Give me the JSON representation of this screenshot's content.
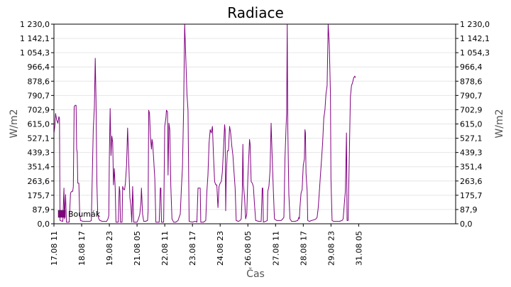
{
  "chart_data": {
    "type": "line",
    "title": "Radiace",
    "xlabel": "Čas",
    "ylabel": "W/m2",
    "ylabel_right": "W/m2",
    "ylim": [
      0,
      1230
    ],
    "y_ticks": [
      "0,0",
      "87,9",
      "175,7",
      "263,6",
      "351,4",
      "439,3",
      "527,1",
      "615,0",
      "702,9",
      "790,7",
      "878,6",
      "966,4",
      "1 054,3",
      "1 142,1",
      "1 230,0"
    ],
    "x_range": [
      0,
      14.5
    ],
    "x_ticks": [
      {
        "x": 0,
        "label": "17.08 11"
      },
      {
        "x": 1,
        "label": "18.08 17"
      },
      {
        "x": 2,
        "label": "19.08 23"
      },
      {
        "x": 3,
        "label": "21.08 05"
      },
      {
        "x": 4,
        "label": "22.08 11"
      },
      {
        "x": 5,
        "label": "23.08 17"
      },
      {
        "x": 6,
        "label": "24.08 23"
      },
      {
        "x": 7,
        "label": "26.08 05"
      },
      {
        "x": 8,
        "label": "27.08 11"
      },
      {
        "x": 9,
        "label": "28.08 17"
      },
      {
        "x": 10,
        "label": "29.08 23"
      },
      {
        "x": 11,
        "label": "31.08 05"
      }
    ],
    "grid": true,
    "legend_position": "bottom-left",
    "series": [
      {
        "name": "Boumák",
        "color": "#800080",
        "points": [
          [
            0.0,
            560
          ],
          [
            0.03,
            600
          ],
          [
            0.06,
            680
          ],
          [
            0.1,
            640
          ],
          [
            0.14,
            620
          ],
          [
            0.18,
            660
          ],
          [
            0.2,
            650
          ],
          [
            0.22,
            20
          ],
          [
            0.32,
            15
          ],
          [
            0.36,
            220
          ],
          [
            0.38,
            30
          ],
          [
            0.42,
            180
          ],
          [
            0.45,
            10
          ],
          [
            0.55,
            10
          ],
          [
            0.6,
            190
          ],
          [
            0.64,
            200
          ],
          [
            0.68,
            200
          ],
          [
            0.7,
            230
          ],
          [
            0.73,
            720
          ],
          [
            0.76,
            730
          ],
          [
            0.8,
            730
          ],
          [
            0.82,
            460
          ],
          [
            0.84,
            440
          ],
          [
            0.86,
            250
          ],
          [
            0.9,
            250
          ],
          [
            0.93,
            60
          ],
          [
            0.96,
            20
          ],
          [
            1.05,
            15
          ],
          [
            1.2,
            15
          ],
          [
            1.3,
            15
          ],
          [
            1.35,
            20
          ],
          [
            1.42,
            580
          ],
          [
            1.46,
            720
          ],
          [
            1.49,
            1020
          ],
          [
            1.52,
            760
          ],
          [
            1.55,
            250
          ],
          [
            1.58,
            60
          ],
          [
            1.62,
            30
          ],
          [
            1.66,
            20
          ],
          [
            1.75,
            15
          ],
          [
            1.9,
            15
          ],
          [
            1.95,
            30
          ],
          [
            1.98,
            50
          ],
          [
            2.0,
            420
          ],
          [
            2.03,
            710
          ],
          [
            2.06,
            420
          ],
          [
            2.09,
            540
          ],
          [
            2.12,
            500
          ],
          [
            2.15,
            240
          ],
          [
            2.18,
            340
          ],
          [
            2.21,
            220
          ],
          [
            2.24,
            10
          ],
          [
            2.32,
            10
          ],
          [
            2.36,
            230
          ],
          [
            2.38,
            200
          ],
          [
            2.4,
            10
          ],
          [
            2.46,
            10
          ],
          [
            2.48,
            230
          ],
          [
            2.52,
            210
          ],
          [
            2.55,
            210
          ],
          [
            2.58,
            250
          ],
          [
            2.62,
            360
          ],
          [
            2.66,
            590
          ],
          [
            2.7,
            380
          ],
          [
            2.74,
            160
          ],
          [
            2.78,
            110
          ],
          [
            2.81,
            10
          ],
          [
            2.84,
            230
          ],
          [
            2.88,
            10
          ],
          [
            2.92,
            10
          ],
          [
            2.96,
            10
          ],
          [
            3.0,
            10
          ],
          [
            3.05,
            30
          ],
          [
            3.1,
            60
          ],
          [
            3.14,
            130
          ],
          [
            3.16,
            220
          ],
          [
            3.2,
            60
          ],
          [
            3.24,
            15
          ],
          [
            3.3,
            15
          ],
          [
            3.38,
            20
          ],
          [
            3.4,
            80
          ],
          [
            3.42,
            700
          ],
          [
            3.45,
            680
          ],
          [
            3.48,
            550
          ],
          [
            3.5,
            500
          ],
          [
            3.52,
            460
          ],
          [
            3.54,
            520
          ],
          [
            3.56,
            500
          ],
          [
            3.6,
            400
          ],
          [
            3.64,
            280
          ],
          [
            3.68,
            10
          ],
          [
            3.8,
            10
          ],
          [
            3.84,
            220
          ],
          [
            3.86,
            220
          ],
          [
            3.88,
            10
          ],
          [
            3.92,
            10
          ],
          [
            3.96,
            10
          ],
          [
            4.0,
            600
          ],
          [
            4.04,
            650
          ],
          [
            4.06,
            700
          ],
          [
            4.1,
            690
          ],
          [
            4.12,
            300
          ],
          [
            4.15,
            620
          ],
          [
            4.18,
            580
          ],
          [
            4.22,
            230
          ],
          [
            4.26,
            30
          ],
          [
            4.32,
            10
          ],
          [
            4.4,
            10
          ],
          [
            4.48,
            20
          ],
          [
            4.52,
            40
          ],
          [
            4.56,
            60
          ],
          [
            4.6,
            220
          ],
          [
            4.64,
            350
          ],
          [
            4.68,
            700
          ],
          [
            4.72,
            1230
          ],
          [
            4.76,
            1020
          ],
          [
            4.8,
            800
          ],
          [
            4.84,
            700
          ],
          [
            4.88,
            15
          ],
          [
            5.0,
            10
          ],
          [
            5.08,
            15
          ],
          [
            5.12,
            15
          ],
          [
            5.16,
            10
          ],
          [
            5.2,
            220
          ],
          [
            5.22,
            220
          ],
          [
            5.24,
            220
          ],
          [
            5.28,
            220
          ],
          [
            5.3,
            10
          ],
          [
            5.4,
            10
          ],
          [
            5.48,
            20
          ],
          [
            5.52,
            200
          ],
          [
            5.56,
            300
          ],
          [
            5.6,
            500
          ],
          [
            5.64,
            580
          ],
          [
            5.68,
            560
          ],
          [
            5.72,
            600
          ],
          [
            5.76,
            420
          ],
          [
            5.8,
            260
          ],
          [
            5.84,
            240
          ],
          [
            5.88,
            240
          ],
          [
            5.92,
            100
          ],
          [
            5.96,
            230
          ],
          [
            6.0,
            250
          ],
          [
            6.04,
            260
          ],
          [
            6.08,
            320
          ],
          [
            6.12,
            460
          ],
          [
            6.16,
            610
          ],
          [
            6.18,
            580
          ],
          [
            6.2,
            80
          ],
          [
            6.22,
            300
          ],
          [
            6.26,
            450
          ],
          [
            6.3,
            450
          ],
          [
            6.34,
            600
          ],
          [
            6.38,
            560
          ],
          [
            6.42,
            480
          ],
          [
            6.46,
            420
          ],
          [
            6.5,
            320
          ],
          [
            6.54,
            220
          ],
          [
            6.58,
            20
          ],
          [
            6.66,
            15
          ],
          [
            6.72,
            20
          ],
          [
            6.76,
            30
          ],
          [
            6.8,
            200
          ],
          [
            6.82,
            490
          ],
          [
            6.84,
            240
          ],
          [
            6.88,
            160
          ],
          [
            6.92,
            30
          ],
          [
            6.96,
            60
          ],
          [
            7.0,
            280
          ],
          [
            7.04,
            440
          ],
          [
            7.06,
            520
          ],
          [
            7.08,
            490
          ],
          [
            7.12,
            260
          ],
          [
            7.16,
            250
          ],
          [
            7.2,
            230
          ],
          [
            7.24,
            120
          ],
          [
            7.28,
            20
          ],
          [
            7.4,
            15
          ],
          [
            7.48,
            15
          ],
          [
            7.52,
            220
          ],
          [
            7.54,
            220
          ],
          [
            7.56,
            10
          ],
          [
            7.64,
            15
          ],
          [
            7.7,
            20
          ],
          [
            7.72,
            200
          ],
          [
            7.76,
            230
          ],
          [
            7.8,
            330
          ],
          [
            7.84,
            620
          ],
          [
            7.88,
            400
          ],
          [
            7.92,
            200
          ],
          [
            7.96,
            30
          ],
          [
            8.04,
            20
          ],
          [
            8.12,
            20
          ],
          [
            8.2,
            20
          ],
          [
            8.26,
            30
          ],
          [
            8.3,
            40
          ],
          [
            8.34,
            400
          ],
          [
            8.38,
            600
          ],
          [
            8.4,
            680
          ],
          [
            8.42,
            1230
          ],
          [
            8.44,
            600
          ],
          [
            8.46,
            400
          ],
          [
            8.48,
            180
          ],
          [
            8.52,
            30
          ],
          [
            8.58,
            15
          ],
          [
            8.7,
            15
          ],
          [
            8.8,
            20
          ],
          [
            8.84,
            40
          ],
          [
            8.86,
            30
          ],
          [
            8.88,
            100
          ],
          [
            8.92,
            190
          ],
          [
            8.96,
            210
          ],
          [
            9.0,
            360
          ],
          [
            9.04,
            400
          ],
          [
            9.06,
            580
          ],
          [
            9.08,
            560
          ],
          [
            9.1,
            310
          ],
          [
            9.14,
            200
          ],
          [
            9.16,
            20
          ],
          [
            9.22,
            15
          ],
          [
            9.3,
            20
          ],
          [
            9.4,
            25
          ],
          [
            9.46,
            30
          ],
          [
            9.5,
            40
          ],
          [
            9.54,
            100
          ],
          [
            9.58,
            200
          ],
          [
            9.62,
            300
          ],
          [
            9.66,
            400
          ],
          [
            9.7,
            500
          ],
          [
            9.74,
            650
          ],
          [
            9.78,
            700
          ],
          [
            9.82,
            800
          ],
          [
            9.86,
            850
          ],
          [
            9.9,
            1230
          ],
          [
            9.94,
            1100
          ],
          [
            9.98,
            800
          ],
          [
            10.0,
            280
          ],
          [
            10.04,
            20
          ],
          [
            10.1,
            15
          ],
          [
            10.2,
            15
          ],
          [
            10.3,
            15
          ],
          [
            10.4,
            20
          ],
          [
            10.44,
            30
          ],
          [
            10.48,
            120
          ],
          [
            10.52,
            200
          ],
          [
            10.56,
            560
          ],
          [
            10.58,
            20
          ],
          [
            10.62,
            20
          ],
          [
            10.66,
            400
          ],
          [
            10.7,
            780
          ],
          [
            10.74,
            850
          ],
          [
            10.78,
            870
          ],
          [
            10.82,
            900
          ],
          [
            10.86,
            910
          ],
          [
            10.88,
            900
          ]
        ]
      }
    ]
  }
}
